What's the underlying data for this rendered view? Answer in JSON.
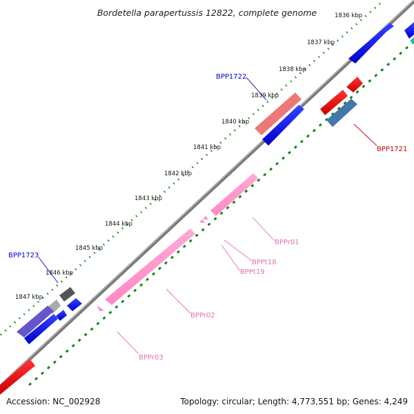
{
  "title": "Bordetella parapertussis 12822, complete genome",
  "footer": {
    "accession": "Accession: NC_002928",
    "summary": "Topology: circular; Length: 4,773,551 bp; Genes: 4,249"
  },
  "scale_ticks": [
    "1836 kbp",
    "1837 kbp",
    "1838 kbp",
    "1839 kbp",
    "1840 kbp",
    "1841 kbp",
    "1842 kbp",
    "1843 kbp",
    "1844 kbp",
    "1845 kbp",
    "1846 kbp",
    "1847 kbp"
  ],
  "feature_labels": {
    "bpp1722": "BPP1722",
    "bpp1721": "BPP1721",
    "bpp1723": "BPP1723",
    "bppr01": "BPPr01",
    "bppt18": "BPPt18",
    "bppt19": "BPPt19",
    "bppr02": "BPPr02",
    "bppr03": "BPPr03"
  },
  "colors": {
    "backbone": "#7a7a7a",
    "cds_blue": "#0000ee",
    "cds_red": "#ee0000",
    "rrna_pink": "#ff99cc",
    "trna_pink": "#ff88cc",
    "tick_green": "#118811",
    "label_blue": "#0000cc",
    "label_red": "#cc0000",
    "label_pink": "#e070b0",
    "steel_blue": "#4477aa",
    "salmon": "#ee7777",
    "slate_blue": "#6655cc",
    "dark_gray": "#555555",
    "light_gray": "#aaaaaa",
    "teal": "#22bbaa"
  }
}
